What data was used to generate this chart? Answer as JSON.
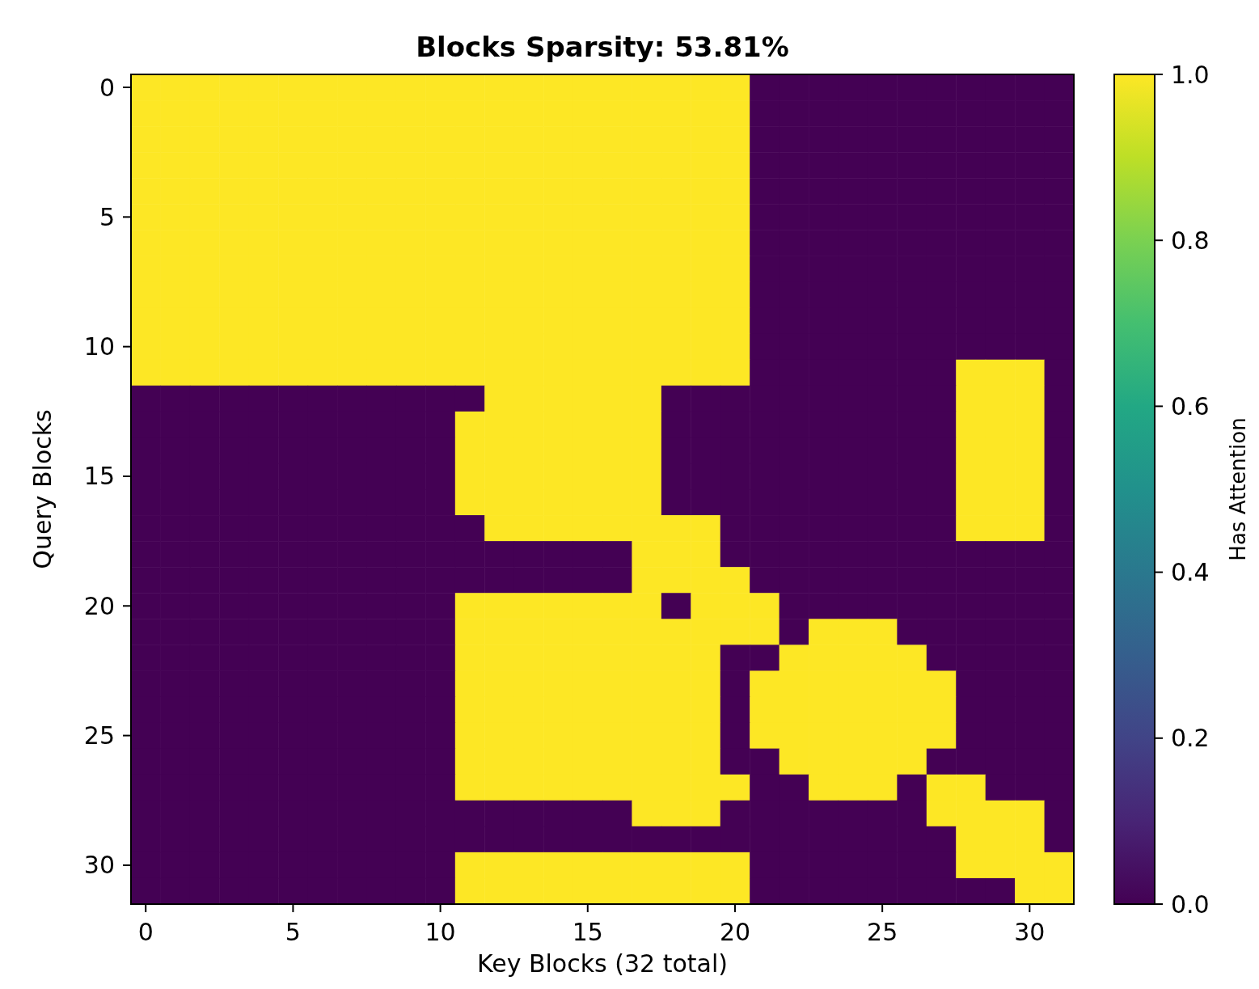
{
  "chart_data": {
    "type": "heatmap",
    "title": "Blocks Sparsity: 53.81%",
    "xlabel": "Key Blocks (32 total)",
    "ylabel": "Query Blocks",
    "clabel": "Has Attention",
    "categories": [
      "0",
      null,
      null,
      null,
      null,
      "5",
      null,
      null,
      null,
      null,
      "10",
      null,
      null,
      null,
      null,
      "15",
      null,
      null,
      null,
      null,
      "20",
      null,
      null,
      null,
      null,
      "25",
      null,
      null,
      null,
      null,
      "30",
      null
    ],
    "y_categories": [
      "0",
      null,
      null,
      null,
      null,
      "5",
      null,
      null,
      null,
      null,
      "10",
      null,
      null,
      null,
      null,
      "15",
      null,
      null,
      null,
      null,
      "20",
      null,
      null,
      null,
      null,
      "25",
      null,
      null,
      null,
      null,
      "30",
      null
    ],
    "clim": [
      0,
      1
    ],
    "cticks": [
      {
        "value": 0,
        "label": "0.0"
      },
      {
        "value": 0.2,
        "label": "0.2"
      },
      {
        "value": 0.4,
        "label": "0.4"
      },
      {
        "value": 0.6,
        "label": "0.6"
      },
      {
        "value": 0.8,
        "label": "0.8"
      },
      {
        "value": 1,
        "label": "1.0"
      }
    ],
    "cells": [
      [
        1,
        1,
        1,
        1,
        1,
        1,
        1,
        1,
        1,
        1,
        1,
        1,
        1,
        1,
        1,
        1,
        1,
        1,
        1,
        1,
        1,
        0,
        0,
        0,
        0,
        0,
        0,
        0,
        0,
        0,
        0,
        0
      ],
      [
        1,
        1,
        1,
        1,
        1,
        1,
        1,
        1,
        1,
        1,
        1,
        1,
        1,
        1,
        1,
        1,
        1,
        1,
        1,
        1,
        1,
        0,
        0,
        0,
        0,
        0,
        0,
        0,
        0,
        0,
        0,
        0
      ],
      [
        1,
        1,
        1,
        1,
        1,
        1,
        1,
        1,
        1,
        1,
        1,
        1,
        1,
        1,
        1,
        1,
        1,
        1,
        1,
        1,
        1,
        0,
        0,
        0,
        0,
        0,
        0,
        0,
        0,
        0,
        0,
        0
      ],
      [
        1,
        1,
        1,
        1,
        1,
        1,
        1,
        1,
        1,
        1,
        1,
        1,
        1,
        1,
        1,
        1,
        1,
        1,
        1,
        1,
        1,
        0,
        0,
        0,
        0,
        0,
        0,
        0,
        0,
        0,
        0,
        0
      ],
      [
        1,
        1,
        1,
        1,
        1,
        1,
        1,
        1,
        1,
        1,
        1,
        1,
        1,
        1,
        1,
        1,
        1,
        1,
        1,
        1,
        1,
        0,
        0,
        0,
        0,
        0,
        0,
        0,
        0,
        0,
        0,
        0
      ],
      [
        1,
        1,
        1,
        1,
        1,
        1,
        1,
        1,
        1,
        1,
        1,
        1,
        1,
        1,
        1,
        1,
        1,
        1,
        1,
        1,
        1,
        0,
        0,
        0,
        0,
        0,
        0,
        0,
        0,
        0,
        0,
        0
      ],
      [
        1,
        1,
        1,
        1,
        1,
        1,
        1,
        1,
        1,
        1,
        1,
        1,
        1,
        1,
        1,
        1,
        1,
        1,
        1,
        1,
        1,
        0,
        0,
        0,
        0,
        0,
        0,
        0,
        0,
        0,
        0,
        0
      ],
      [
        1,
        1,
        1,
        1,
        1,
        1,
        1,
        1,
        1,
        1,
        1,
        1,
        1,
        1,
        1,
        1,
        1,
        1,
        1,
        1,
        1,
        0,
        0,
        0,
        0,
        0,
        0,
        0,
        0,
        0,
        0,
        0
      ],
      [
        1,
        1,
        1,
        1,
        1,
        1,
        1,
        1,
        1,
        1,
        1,
        1,
        1,
        1,
        1,
        1,
        1,
        1,
        1,
        1,
        1,
        0,
        0,
        0,
        0,
        0,
        0,
        0,
        0,
        0,
        0,
        0
      ],
      [
        1,
        1,
        1,
        1,
        1,
        1,
        1,
        1,
        1,
        1,
        1,
        1,
        1,
        1,
        1,
        1,
        1,
        1,
        1,
        1,
        1,
        0,
        0,
        0,
        0,
        0,
        0,
        0,
        0,
        0,
        0,
        0
      ],
      [
        1,
        1,
        1,
        1,
        1,
        1,
        1,
        1,
        1,
        1,
        1,
        1,
        1,
        1,
        1,
        1,
        1,
        1,
        1,
        1,
        1,
        0,
        0,
        0,
        0,
        0,
        0,
        0,
        0,
        0,
        0,
        0
      ],
      [
        1,
        1,
        1,
        1,
        1,
        1,
        1,
        1,
        1,
        1,
        1,
        1,
        1,
        1,
        1,
        1,
        1,
        1,
        1,
        1,
        1,
        0,
        0,
        0,
        0,
        0,
        0,
        0,
        1,
        1,
        1,
        0
      ],
      [
        0,
        0,
        0,
        0,
        0,
        0,
        0,
        0,
        0,
        0,
        0,
        0,
        1,
        1,
        1,
        1,
        1,
        1,
        0,
        0,
        0,
        0,
        0,
        0,
        0,
        0,
        0,
        0,
        1,
        1,
        1,
        0
      ],
      [
        0,
        0,
        0,
        0,
        0,
        0,
        0,
        0,
        0,
        0,
        0,
        1,
        1,
        1,
        1,
        1,
        1,
        1,
        0,
        0,
        0,
        0,
        0,
        0,
        0,
        0,
        0,
        0,
        1,
        1,
        1,
        0
      ],
      [
        0,
        0,
        0,
        0,
        0,
        0,
        0,
        0,
        0,
        0,
        0,
        1,
        1,
        1,
        1,
        1,
        1,
        1,
        0,
        0,
        0,
        0,
        0,
        0,
        0,
        0,
        0,
        0,
        1,
        1,
        1,
        0
      ],
      [
        0,
        0,
        0,
        0,
        0,
        0,
        0,
        0,
        0,
        0,
        0,
        1,
        1,
        1,
        1,
        1,
        1,
        1,
        0,
        0,
        0,
        0,
        0,
        0,
        0,
        0,
        0,
        0,
        1,
        1,
        1,
        0
      ],
      [
        0,
        0,
        0,
        0,
        0,
        0,
        0,
        0,
        0,
        0,
        0,
        1,
        1,
        1,
        1,
        1,
        1,
        1,
        0,
        0,
        0,
        0,
        0,
        0,
        0,
        0,
        0,
        0,
        1,
        1,
        1,
        0
      ],
      [
        0,
        0,
        0,
        0,
        0,
        0,
        0,
        0,
        0,
        0,
        0,
        0,
        1,
        1,
        1,
        1,
        1,
        1,
        1,
        1,
        0,
        0,
        0,
        0,
        0,
        0,
        0,
        0,
        1,
        1,
        1,
        0
      ],
      [
        0,
        0,
        0,
        0,
        0,
        0,
        0,
        0,
        0,
        0,
        0,
        0,
        0,
        0,
        0,
        0,
        0,
        1,
        1,
        1,
        0,
        0,
        0,
        0,
        0,
        0,
        0,
        0,
        0,
        0,
        0,
        0
      ],
      [
        0,
        0,
        0,
        0,
        0,
        0,
        0,
        0,
        0,
        0,
        0,
        0,
        0,
        0,
        0,
        0,
        0,
        1,
        1,
        1,
        1,
        0,
        0,
        0,
        0,
        0,
        0,
        0,
        0,
        0,
        0,
        0
      ],
      [
        0,
        0,
        0,
        0,
        0,
        0,
        0,
        0,
        0,
        0,
        0,
        1,
        1,
        1,
        1,
        1,
        1,
        1,
        0,
        1,
        1,
        1,
        0,
        0,
        0,
        0,
        0,
        0,
        0,
        0,
        0,
        0
      ],
      [
        0,
        0,
        0,
        0,
        0,
        0,
        0,
        0,
        0,
        0,
        0,
        1,
        1,
        1,
        1,
        1,
        1,
        1,
        1,
        1,
        1,
        1,
        0,
        1,
        1,
        1,
        0,
        0,
        0,
        0,
        0,
        0
      ],
      [
        0,
        0,
        0,
        0,
        0,
        0,
        0,
        0,
        0,
        0,
        0,
        1,
        1,
        1,
        1,
        1,
        1,
        1,
        1,
        1,
        0,
        0,
        1,
        1,
        1,
        1,
        1,
        0,
        0,
        0,
        0,
        0
      ],
      [
        0,
        0,
        0,
        0,
        0,
        0,
        0,
        0,
        0,
        0,
        0,
        1,
        1,
        1,
        1,
        1,
        1,
        1,
        1,
        1,
        0,
        1,
        1,
        1,
        1,
        1,
        1,
        1,
        0,
        0,
        0,
        0
      ],
      [
        0,
        0,
        0,
        0,
        0,
        0,
        0,
        0,
        0,
        0,
        0,
        1,
        1,
        1,
        1,
        1,
        1,
        1,
        1,
        1,
        0,
        1,
        1,
        1,
        1,
        1,
        1,
        1,
        0,
        0,
        0,
        0
      ],
      [
        0,
        0,
        0,
        0,
        0,
        0,
        0,
        0,
        0,
        0,
        0,
        1,
        1,
        1,
        1,
        1,
        1,
        1,
        1,
        1,
        0,
        1,
        1,
        1,
        1,
        1,
        1,
        1,
        0,
        0,
        0,
        0
      ],
      [
        0,
        0,
        0,
        0,
        0,
        0,
        0,
        0,
        0,
        0,
        0,
        1,
        1,
        1,
        1,
        1,
        1,
        1,
        1,
        1,
        0,
        0,
        1,
        1,
        1,
        1,
        1,
        0,
        0,
        0,
        0,
        0
      ],
      [
        0,
        0,
        0,
        0,
        0,
        0,
        0,
        0,
        0,
        0,
        0,
        1,
        1,
        1,
        1,
        1,
        1,
        1,
        1,
        1,
        1,
        0,
        0,
        1,
        1,
        1,
        0,
        1,
        1,
        0,
        0,
        0
      ],
      [
        0,
        0,
        0,
        0,
        0,
        0,
        0,
        0,
        0,
        0,
        0,
        0,
        0,
        0,
        0,
        0,
        0,
        1,
        1,
        1,
        0,
        0,
        0,
        0,
        0,
        0,
        0,
        1,
        1,
        1,
        1,
        0
      ],
      [
        0,
        0,
        0,
        0,
        0,
        0,
        0,
        0,
        0,
        0,
        0,
        0,
        0,
        0,
        0,
        0,
        0,
        0,
        0,
        0,
        0,
        0,
        0,
        0,
        0,
        0,
        0,
        0,
        1,
        1,
        1,
        0
      ],
      [
        0,
        0,
        0,
        0,
        0,
        0,
        0,
        0,
        0,
        0,
        0,
        1,
        1,
        1,
        1,
        1,
        1,
        1,
        1,
        1,
        1,
        0,
        0,
        0,
        0,
        0,
        0,
        0,
        1,
        1,
        1,
        1
      ],
      [
        0,
        0,
        0,
        0,
        0,
        0,
        0,
        0,
        0,
        0,
        0,
        1,
        1,
        1,
        1,
        1,
        1,
        1,
        1,
        1,
        1,
        0,
        0,
        0,
        0,
        0,
        0,
        0,
        0,
        0,
        1,
        1
      ]
    ]
  }
}
